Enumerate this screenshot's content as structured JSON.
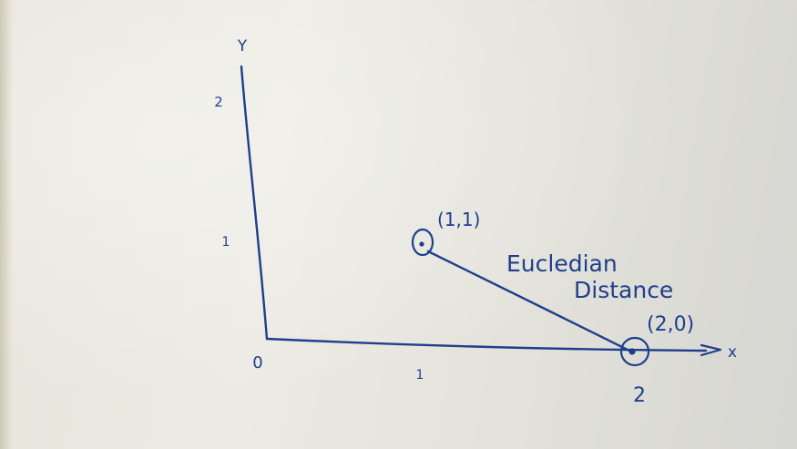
{
  "axes": {
    "x_label": "x",
    "y_label": "Y",
    "origin_label": "0",
    "x_ticks": [
      "1",
      "2"
    ],
    "y_ticks": [
      "1",
      "2"
    ]
  },
  "points": [
    {
      "label": "(1,1)",
      "x": 1,
      "y": 1
    },
    {
      "label": "(2,0)",
      "x": 2,
      "y": 0
    }
  ],
  "annotation": {
    "line1": "Eucledian",
    "line2": "Distance"
  },
  "ink_color": "#1f3f8c"
}
